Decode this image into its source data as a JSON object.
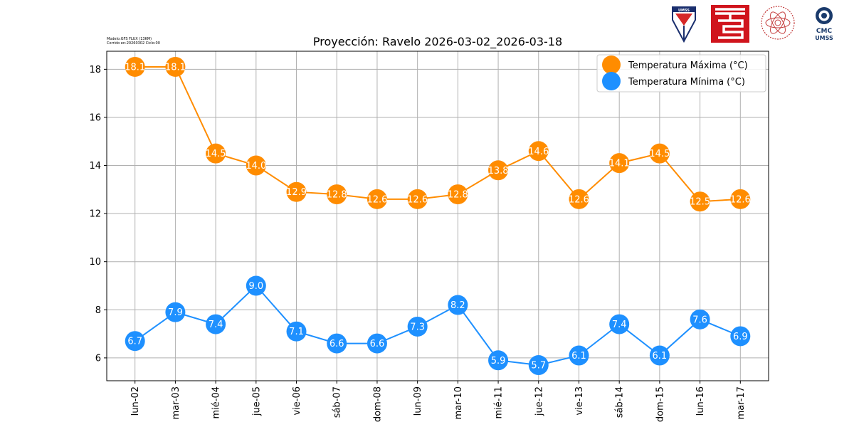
{
  "meta": {
    "model_line": "Modelo:GFS FLUX (13KM)",
    "run_line": "Corrido en:20260302 Ciclo:00"
  },
  "logos": {
    "umss_text": "UMSS",
    "cmc_line1": "CMC",
    "cmc_line2": "UMSS"
  },
  "colors": {
    "max": "#ff8c00",
    "min": "#1e90ff",
    "grid": "#b0b0b0"
  },
  "chart_data": {
    "type": "line",
    "title": "Proyección: Ravelo 2026-03-02_2026-03-18",
    "xlabel": "",
    "ylabel": "",
    "categories": [
      "lun-02",
      "mar-03",
      "mié-04",
      "jue-05",
      "vie-06",
      "sáb-07",
      "dom-08",
      "lun-09",
      "mar-10",
      "mié-11",
      "jue-12",
      "vie-13",
      "sáb-14",
      "dom-15",
      "lun-16",
      "mar-17"
    ],
    "series": [
      {
        "name": "Temperatura Máxima  (°C)",
        "color": "#ff8c00",
        "values": [
          18.1,
          18.1,
          14.5,
          14.0,
          12.9,
          12.8,
          12.6,
          12.6,
          12.8,
          13.8,
          14.6,
          12.6,
          14.1,
          14.5,
          12.5,
          12.6
        ]
      },
      {
        "name": "Temperatura Mínima  (°C)",
        "color": "#1e90ff",
        "values": [
          6.7,
          7.9,
          7.4,
          9.0,
          7.1,
          6.6,
          6.6,
          7.3,
          8.2,
          5.9,
          5.7,
          6.1,
          7.4,
          6.1,
          7.6,
          6.9
        ]
      }
    ],
    "yticks": [
      6,
      8,
      10,
      12,
      14,
      16,
      18
    ],
    "ylim": [
      5.05,
      18.75
    ],
    "grid": true,
    "legend_position": "top-right"
  }
}
